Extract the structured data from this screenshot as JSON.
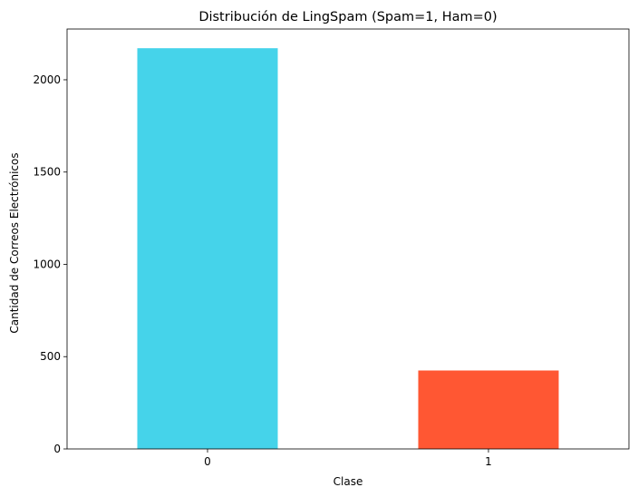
{
  "chart_data": {
    "type": "bar",
    "title": "Distribución de LingSpam (Spam=1, Ham=0)",
    "xlabel": "Clase",
    "ylabel": "Cantidad de Correos Electrónicos",
    "categories": [
      "0",
      "1"
    ],
    "values": [
      2171,
      425
    ],
    "colors": [
      "#45d3ea",
      "#ff5733"
    ],
    "ylim": [
      0,
      2275
    ],
    "yticks": [
      0,
      500,
      1000,
      1500,
      2000
    ],
    "grid": false,
    "legend": "none"
  }
}
